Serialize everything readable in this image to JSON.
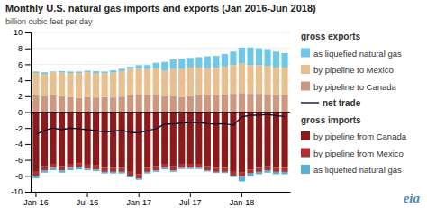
{
  "chart_data": {
    "type": "bar",
    "stacked": true,
    "title": "Monthly U.S. natural gas imports and exports (Jan 2016-Jun 2018)",
    "y_label": "billion cubic feet per day",
    "annotations": [
      "eia"
    ],
    "categories": [
      "Jan-16",
      null,
      null,
      null,
      null,
      null,
      "Jul-16",
      null,
      null,
      null,
      null,
      null,
      "Jan-17",
      null,
      null,
      null,
      null,
      null,
      "Jul-17",
      null,
      null,
      null,
      null,
      null,
      "Jan-18",
      null,
      null,
      null,
      null,
      null
    ],
    "ylim": [
      -10,
      10
    ],
    "yticks": [
      -10,
      -8,
      -6,
      -4,
      -2,
      0,
      2,
      4,
      6,
      8,
      10
    ],
    "grid": true,
    "series": [
      {
        "name": "by pipeline to Canada",
        "group": "gross exports",
        "type": "bar",
        "color": "#cc9980",
        "values": [
          2.1,
          2.0,
          2.1,
          2.0,
          1.9,
          1.8,
          1.9,
          1.85,
          1.9,
          1.85,
          1.95,
          2.1,
          2.2,
          2.1,
          2.2,
          2.0,
          2.0,
          1.9,
          2.0,
          2.1,
          2.1,
          2.15,
          2.2,
          2.3,
          2.4,
          2.3,
          2.3,
          2.2,
          2.1,
          2.1
        ]
      },
      {
        "name": "by pipeline to Mexico",
        "group": "gross exports",
        "type": "bar",
        "color": "#e8c090",
        "values": [
          2.8,
          2.8,
          2.9,
          2.95,
          3.0,
          3.1,
          3.1,
          3.0,
          3.0,
          3.1,
          3.2,
          3.3,
          3.3,
          3.3,
          3.3,
          3.2,
          3.4,
          3.5,
          3.6,
          3.5,
          3.4,
          3.4,
          3.5,
          3.6,
          3.7,
          3.6,
          3.6,
          3.6,
          3.5,
          3.5
        ]
      },
      {
        "name": "as liquefied natural gas",
        "group": "gross exports",
        "type": "bar",
        "color": "#70c8e8",
        "values": [
          0.2,
          0.2,
          0.1,
          0.2,
          0.2,
          0.2,
          0.2,
          0.3,
          0.2,
          0.3,
          0.3,
          0.3,
          0.4,
          0.5,
          0.7,
          1.1,
          1.2,
          1.3,
          1.2,
          1.3,
          1.5,
          1.5,
          1.6,
          1.7,
          2.0,
          2.2,
          2.1,
          2.1,
          2.0,
          1.8
        ]
      },
      {
        "name": "by pipeline from Canada",
        "group": "gross imports",
        "type": "bar",
        "color": "#8b1a1a",
        "values": [
          -7.5,
          -6.8,
          -6.5,
          -6.8,
          -6.5,
          -6.4,
          -6.6,
          -6.7,
          -7.0,
          -7.0,
          -7.0,
          -7.5,
          -7.8,
          -7.0,
          -6.8,
          -6.5,
          -6.8,
          -6.5,
          -6.5,
          -6.5,
          -6.8,
          -7.0,
          -7.0,
          -7.5,
          -7.6,
          -7.2,
          -7.0,
          -6.8,
          -7.0,
          -7.0
        ]
      },
      {
        "name": "by pipeline from Mexico",
        "group": "gross imports",
        "type": "bar",
        "color": "#b03030",
        "values": [
          -0.5,
          -0.5,
          -0.5,
          -0.5,
          -0.5,
          -0.5,
          -0.5,
          -0.5,
          -0.5,
          -0.5,
          -0.5,
          -0.5,
          -0.5,
          -0.5,
          -0.5,
          -0.5,
          -0.5,
          -0.5,
          -0.5,
          -0.5,
          -0.5,
          -0.5,
          -0.5,
          -0.5,
          -0.5,
          -0.5,
          -0.5,
          -0.5,
          -0.5,
          -0.5
        ]
      },
      {
        "name": "as liquefied natural gas",
        "group": "gross imports",
        "type": "bar",
        "color": "#5ab0d0",
        "values": [
          -0.3,
          -0.3,
          -0.3,
          -0.3,
          -0.3,
          -0.3,
          -0.2,
          -0.2,
          -0.2,
          -0.2,
          -0.2,
          -0.2,
          -0.2,
          -0.2,
          -0.2,
          -0.2,
          -0.2,
          -0.15,
          -0.15,
          -0.15,
          -0.15,
          -0.15,
          -0.15,
          -0.15,
          -0.6,
          -0.4,
          -0.3,
          -0.3,
          -0.3,
          -0.3
        ]
      },
      {
        "name": "net trade",
        "type": "line",
        "color": "#101030",
        "values": [
          -2.8,
          -2.3,
          -2.0,
          -2.2,
          -2.0,
          -2.1,
          -2.2,
          -2.3,
          -2.5,
          -2.4,
          -2.25,
          -2.55,
          -2.6,
          -2.3,
          -2.1,
          -1.5,
          -1.5,
          -1.35,
          -1.3,
          -1.3,
          -1.45,
          -1.5,
          -1.45,
          -1.65,
          -0.6,
          -0.4,
          -0.4,
          -0.3,
          -0.45,
          -0.55
        ]
      }
    ]
  }
}
